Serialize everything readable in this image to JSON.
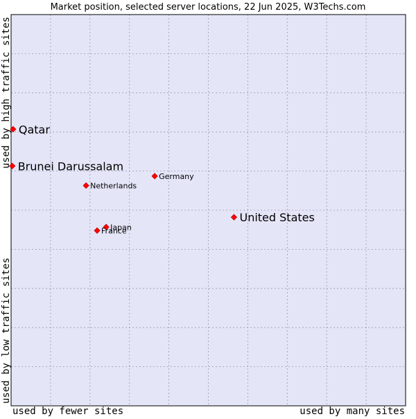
{
  "chart_data": {
    "type": "scatter",
    "title": "Market position, selected server locations, 22 Jun 2025, W3Techs.com",
    "xlabel_left": "used by fewer sites",
    "xlabel_right": "used by many sites",
    "ylabel_bottom": "used by low traffic sites",
    "ylabel_top": "used by high traffic sites",
    "xlim": [
      0,
      100
    ],
    "ylim": [
      0,
      100
    ],
    "grid": true,
    "colors": {
      "plot_bg": "#e4e6f8",
      "grid": "#9a9aaa",
      "frame": "#000000",
      "marker": "#ff0000",
      "marker_edge": "#b00000",
      "text": "#000000"
    },
    "points": [
      {
        "name": "Qatar",
        "x": 0.5,
        "y": 70.7,
        "size": "large"
      },
      {
        "name": "Brunei Darussalam",
        "x": 0.3,
        "y": 61.3,
        "size": "large"
      },
      {
        "name": "Germany",
        "x": 36.4,
        "y": 58.7,
        "size": "small"
      },
      {
        "name": "Netherlands",
        "x": 19.0,
        "y": 56.3,
        "size": "small"
      },
      {
        "name": "United States",
        "x": 56.5,
        "y": 48.2,
        "size": "large"
      },
      {
        "name": "Japan",
        "x": 24.1,
        "y": 45.7,
        "size": "small"
      },
      {
        "name": "France",
        "x": 21.8,
        "y": 44.8,
        "size": "small"
      }
    ]
  }
}
